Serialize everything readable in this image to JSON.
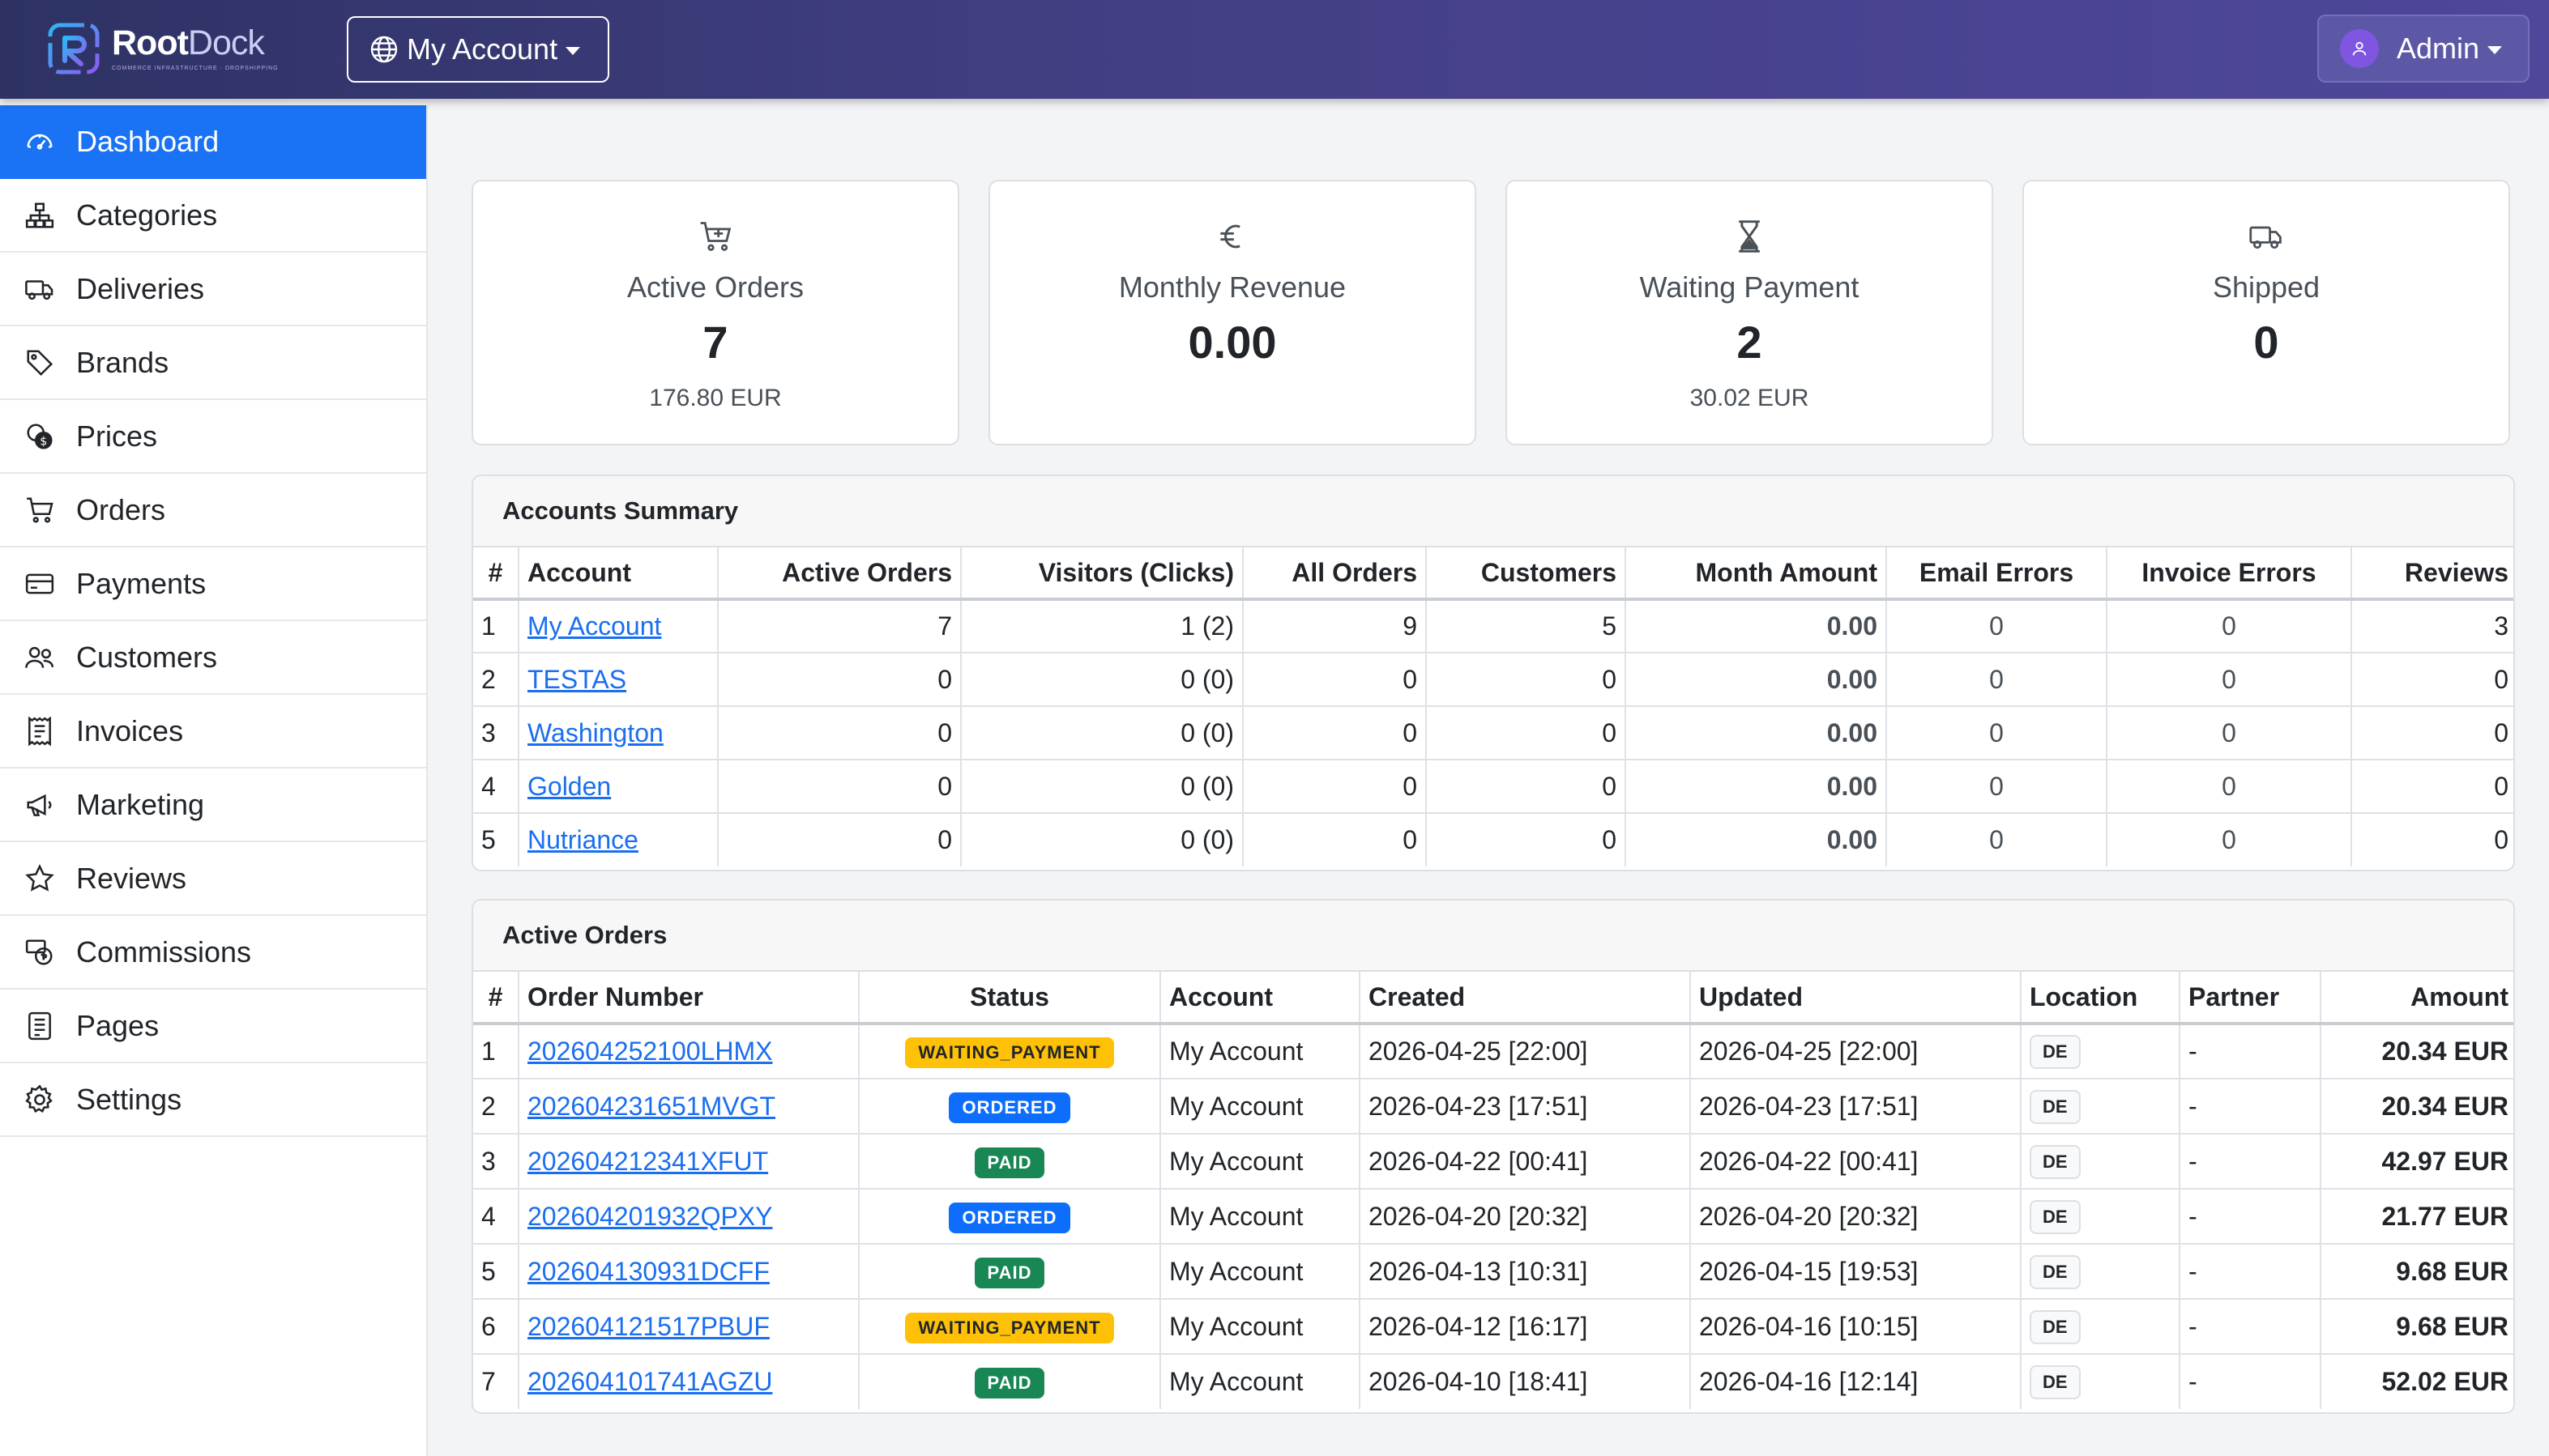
{
  "brand": {
    "name_a": "Root",
    "name_b": "Dock",
    "tagline": "COMMERCE INFRASTRUCTURE · DROPSHIPPING"
  },
  "header": {
    "account_label": "My Account",
    "user_label": "Admin"
  },
  "sidebar": {
    "items": [
      {
        "label": "Dashboard",
        "icon": "speedometer-icon"
      },
      {
        "label": "Categories",
        "icon": "diagram-icon"
      },
      {
        "label": "Deliveries",
        "icon": "truck-icon"
      },
      {
        "label": "Brands",
        "icon": "tags-icon"
      },
      {
        "label": "Prices",
        "icon": "coins-icon"
      },
      {
        "label": "Orders",
        "icon": "cart-icon"
      },
      {
        "label": "Payments",
        "icon": "credit-card-icon"
      },
      {
        "label": "Customers",
        "icon": "people-icon"
      },
      {
        "label": "Invoices",
        "icon": "receipt-icon"
      },
      {
        "label": "Marketing",
        "icon": "megaphone-icon"
      },
      {
        "label": "Reviews",
        "icon": "star-icon"
      },
      {
        "label": "Commissions",
        "icon": "cash-coin-icon"
      },
      {
        "label": "Pages",
        "icon": "file-text-icon"
      },
      {
        "label": "Settings",
        "icon": "gear-icon"
      }
    ]
  },
  "cards": [
    {
      "label": "Active Orders",
      "value": "7",
      "sub": "176.80 EUR",
      "icon": "cart-icon"
    },
    {
      "label": "Monthly Revenue",
      "value": "0.00",
      "sub": "",
      "icon": "euro-icon"
    },
    {
      "label": "Waiting Payment",
      "value": "2",
      "sub": "30.02 EUR",
      "icon": "hourglass-icon"
    },
    {
      "label": "Shipped",
      "value": "0",
      "sub": "",
      "icon": "truck-icon"
    }
  ],
  "accounts_summary": {
    "title": "Accounts Summary",
    "columns": [
      "#",
      "Account",
      "Active Orders",
      "Visitors (Clicks)",
      "All Orders",
      "Customers",
      "Month Amount",
      "Email Errors",
      "Invoice Errors",
      "Reviews"
    ],
    "rows": [
      [
        "1",
        "My Account",
        "7",
        "1 (2)",
        "9",
        "5",
        "0.00",
        "0",
        "0",
        "3"
      ],
      [
        "2",
        "TESTAS",
        "0",
        "0 (0)",
        "0",
        "0",
        "0.00",
        "0",
        "0",
        "0"
      ],
      [
        "3",
        "Washington",
        "0",
        "0 (0)",
        "0",
        "0",
        "0.00",
        "0",
        "0",
        "0"
      ],
      [
        "4",
        "Golden",
        "0",
        "0 (0)",
        "0",
        "0",
        "0.00",
        "0",
        "0",
        "0"
      ],
      [
        "5",
        "Nutriance",
        "0",
        "0 (0)",
        "0",
        "0",
        "0.00",
        "0",
        "0",
        "0"
      ]
    ]
  },
  "active_orders": {
    "title": "Active Orders",
    "columns": [
      "#",
      "Order Number",
      "Status",
      "Account",
      "Created",
      "Updated",
      "Location",
      "Partner",
      "Amount"
    ],
    "rows": [
      [
        "1",
        "202604252100LHMX",
        "WAITING_PAYMENT",
        "My Account",
        "2026-04-25 [22:00]",
        "2026-04-25 [22:00]",
        "DE",
        "-",
        "20.34 EUR"
      ],
      [
        "2",
        "202604231651MVGT",
        "ORDERED",
        "My Account",
        "2026-04-23 [17:51]",
        "2026-04-23 [17:51]",
        "DE",
        "-",
        "20.34 EUR"
      ],
      [
        "3",
        "202604212341XFUT",
        "PAID",
        "My Account",
        "2026-04-22 [00:41]",
        "2026-04-22 [00:41]",
        "DE",
        "-",
        "42.97 EUR"
      ],
      [
        "4",
        "202604201932QPXY",
        "ORDERED",
        "My Account",
        "2026-04-20 [20:32]",
        "2026-04-20 [20:32]",
        "DE",
        "-",
        "21.77 EUR"
      ],
      [
        "5",
        "202604130931DCFF",
        "PAID",
        "My Account",
        "2026-04-13 [10:31]",
        "2026-04-15 [19:53]",
        "DE",
        "-",
        "9.68 EUR"
      ],
      [
        "6",
        "202604121517PBUF",
        "WAITING_PAYMENT",
        "My Account",
        "2026-04-12 [16:17]",
        "2026-04-16 [10:15]",
        "DE",
        "-",
        "9.68 EUR"
      ],
      [
        "7",
        "202604101741AGZU",
        "PAID",
        "My Account",
        "2026-04-10 [18:41]",
        "2026-04-16 [12:14]",
        "DE",
        "-",
        "52.02 EUR"
      ]
    ]
  },
  "colors": {
    "active_nav": "#1a73f4",
    "header_start": "#2d3263",
    "header_end": "#4e479a",
    "link": "#1a6ef0",
    "waiting": "#ffc107",
    "ordered": "#0d6efd",
    "paid": "#198754"
  }
}
